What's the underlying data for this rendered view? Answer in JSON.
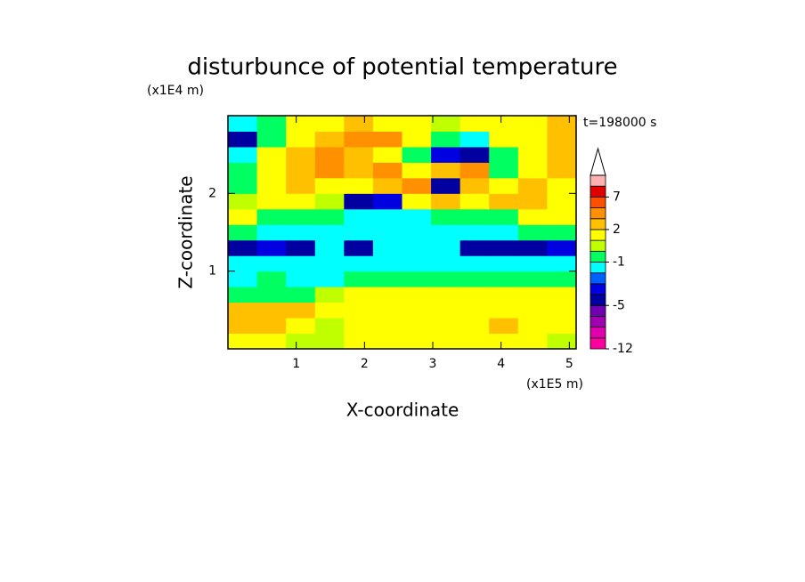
{
  "chart_data": {
    "type": "contour",
    "title": "disturbunce of potential temperature",
    "xlabel": "X-coordinate",
    "ylabel": "Z-coordinate",
    "xunit": "(x1E5 m)",
    "yunit": "(x1E4 m)",
    "annotation": "t=198000 s",
    "xlim": [
      0,
      5.1
    ],
    "ylim": [
      0,
      3.0
    ],
    "xticks": [
      1,
      2,
      3,
      4,
      5
    ],
    "yticks": [
      1,
      2
    ],
    "x": [
      0.21,
      0.64,
      1.06,
      1.49,
      1.91,
      2.34,
      2.76,
      3.19,
      3.61,
      4.04,
      4.46,
      4.89
    ],
    "y": [
      0.1,
      0.3,
      0.5,
      0.7,
      0.9,
      1.1,
      1.3,
      1.5,
      1.7,
      1.9,
      2.1,
      2.3,
      2.5,
      2.7,
      2.9
    ],
    "z": [
      [
        1.5,
        1.5,
        0.5,
        0.5,
        1.5,
        1.5,
        1.5,
        1.5,
        1.5,
        1.5,
        1.5,
        0.5
      ],
      [
        2.5,
        2.5,
        1.5,
        0.5,
        1.5,
        1.5,
        1.5,
        1.5,
        1.5,
        2.5,
        1.5,
        1.5
      ],
      [
        2.5,
        2.5,
        2.5,
        1.5,
        1.5,
        1.5,
        1.5,
        1.5,
        1.5,
        1.5,
        1.5,
        1.5
      ],
      [
        -0.5,
        -0.5,
        -0.5,
        0.5,
        1.5,
        1.5,
        1.5,
        1.5,
        1.5,
        1.5,
        1.5,
        1.5
      ],
      [
        -1.5,
        -0.5,
        -1.5,
        -1.5,
        -0.5,
        -0.5,
        -0.5,
        -0.5,
        -0.5,
        -0.5,
        -0.5,
        -0.5
      ],
      [
        -1.5,
        -1.5,
        -1.5,
        -1.5,
        -1.5,
        -1.5,
        -1.5,
        -1.5,
        -1.5,
        -1.5,
        -1.5,
        -1.5
      ],
      [
        -4.5,
        -3.5,
        -4.5,
        -1.5,
        -4.5,
        -1.5,
        -1.5,
        -1.5,
        -4.5,
        -4.5,
        -4.5,
        -3.5
      ],
      [
        -0.5,
        -1.5,
        -1.5,
        -1.5,
        -1.5,
        -1.5,
        -1.5,
        -1.5,
        -1.5,
        -1.5,
        -0.5,
        -0.5
      ],
      [
        1.5,
        -0.5,
        -0.5,
        -0.5,
        -1.5,
        -1.5,
        -1.5,
        -0.5,
        -0.5,
        -0.5,
        1.5,
        1.5
      ],
      [
        0.5,
        1.5,
        1.5,
        0.5,
        -4.5,
        -3.5,
        1.5,
        2.5,
        1.5,
        2.5,
        2.5,
        1.5
      ],
      [
        -0.5,
        1.5,
        2.5,
        1.5,
        1.5,
        2.5,
        3.5,
        -4.5,
        2.5,
        1.5,
        2.5,
        1.5
      ],
      [
        -0.5,
        1.5,
        2.5,
        3.5,
        2.5,
        3.5,
        1.5,
        2.5,
        3.5,
        -0.5,
        1.5,
        2.5
      ],
      [
        -1.5,
        1.5,
        2.5,
        4,
        2.5,
        1.5,
        -0.5,
        -3.5,
        -4.5,
        -0.5,
        1.5,
        2.5
      ],
      [
        -4.5,
        -0.5,
        1.5,
        2.5,
        4,
        3.5,
        1.5,
        -0.5,
        -1.5,
        1.5,
        1.5,
        2.5
      ],
      [
        -1.5,
        -0.5,
        1.5,
        1.5,
        2.5,
        1.5,
        1.5,
        0.5,
        1.5,
        1.5,
        1.5,
        2.5
      ]
    ],
    "colorbar": {
      "levels": [
        -12,
        -10,
        -8,
        -6,
        -5,
        -4,
        -3,
        -2,
        -1,
        0,
        1,
        2,
        3,
        5,
        7,
        9,
        11
      ],
      "colors": [
        "#ff00a0",
        "#e000b0",
        "#a000b0",
        "#7000b0",
        "#0000a0",
        "#0000e0",
        "#0060ff",
        "#00ffff",
        "#00ff60",
        "#c0ff00",
        "#ffff00",
        "#ffc000",
        "#ff9000",
        "#ff5000",
        "#e00000",
        "#ffb0b0"
      ],
      "ticks": [
        -12,
        -5,
        -1,
        2,
        7
      ]
    }
  }
}
